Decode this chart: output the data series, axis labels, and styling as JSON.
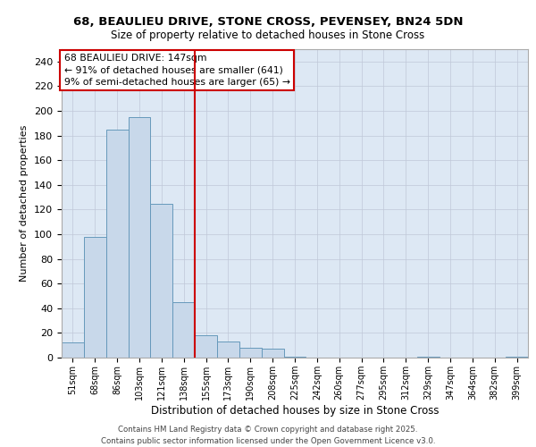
{
  "title_line1": "68, BEAULIEU DRIVE, STONE CROSS, PEVENSEY, BN24 5DN",
  "title_line2": "Size of property relative to detached houses in Stone Cross",
  "xlabel": "Distribution of detached houses by size in Stone Cross",
  "ylabel": "Number of detached properties",
  "bin_labels": [
    "51sqm",
    "68sqm",
    "86sqm",
    "103sqm",
    "121sqm",
    "138sqm",
    "155sqm",
    "173sqm",
    "190sqm",
    "208sqm",
    "225sqm",
    "242sqm",
    "260sqm",
    "277sqm",
    "295sqm",
    "312sqm",
    "329sqm",
    "347sqm",
    "364sqm",
    "382sqm",
    "399sqm"
  ],
  "bar_values": [
    12,
    98,
    185,
    195,
    125,
    45,
    18,
    13,
    8,
    7,
    1,
    0,
    0,
    0,
    0,
    0,
    1,
    0,
    0,
    0,
    1
  ],
  "bar_color": "#c8d8ea",
  "bar_edge_color": "#6699bb",
  "grid_color": "#c0c8d8",
  "bg_color": "#dde8f4",
  "vline_x": 5.5,
  "vline_color": "#cc0000",
  "annotation_text": "68 BEAULIEU DRIVE: 147sqm\n← 91% of detached houses are smaller (641)\n9% of semi-detached houses are larger (65) →",
  "annotation_box_facecolor": "#ffffff",
  "annotation_box_edge": "#cc0000",
  "footer_line1": "Contains HM Land Registry data © Crown copyright and database right 2025.",
  "footer_line2": "Contains public sector information licensed under the Open Government Licence v3.0.",
  "ylim": [
    0,
    250
  ],
  "yticks": [
    0,
    20,
    40,
    60,
    80,
    100,
    120,
    140,
    160,
    180,
    200,
    220,
    240
  ],
  "title1_fontsize": 9.5,
  "title2_fontsize": 8.5,
  "footer_fontsize": 6.2,
  "ylabel_fontsize": 8,
  "xlabel_fontsize": 8.5,
  "tick_fontsize": 8,
  "xtick_fontsize": 7
}
